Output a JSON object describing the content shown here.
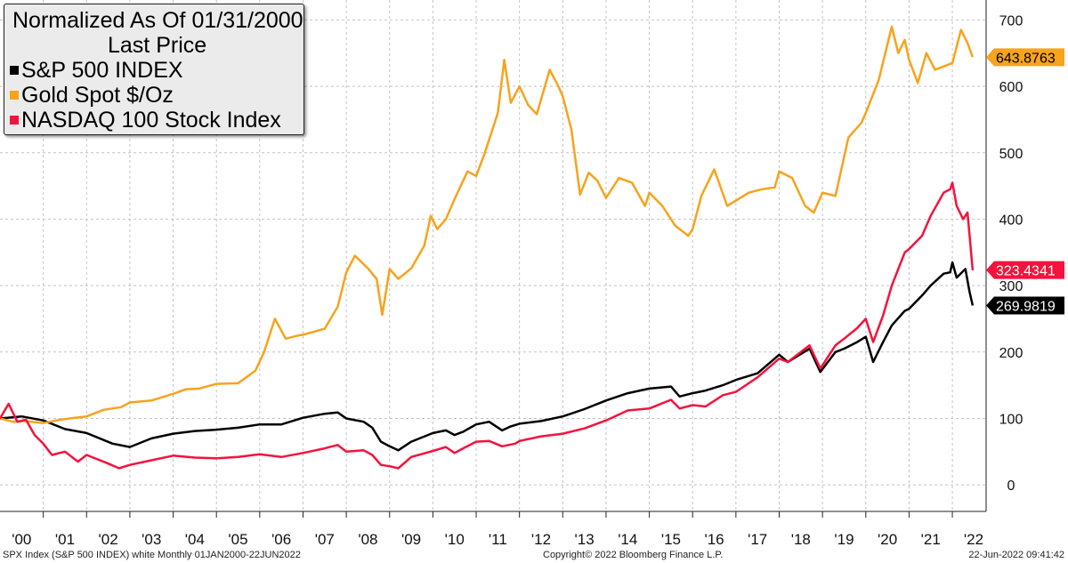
{
  "legend": {
    "title": "Normalized As Of 01/31/2000",
    "subtitle": "Last Price"
  },
  "footer": {
    "left": "SPX Index (S&P 500 INDEX) white  Monthly 01JAN2000-22JUN2022",
    "center": "Copyright© 2022 Bloomberg Finance L.P.",
    "right": "22-Jun-2022 09:41:42"
  },
  "chart_data": {
    "type": "line",
    "title": "Normalized As Of 01/31/2000",
    "subtitle": "Last Price",
    "x_labels": [
      "'00",
      "'01",
      "'02",
      "'03",
      "'04",
      "'05",
      "'06",
      "'07",
      "'08",
      "'09",
      "'10",
      "'11",
      "'12",
      "'13",
      "'14",
      "'15",
      "'16",
      "'17",
      "'18",
      "'19",
      "'20",
      "'21",
      "'22"
    ],
    "y_ticks": [
      0,
      100,
      200,
      300,
      400,
      500,
      600,
      700
    ],
    "ylim": [
      -40,
      730
    ],
    "y_axis_position": "right",
    "grid": true,
    "legend_position": "top-left",
    "series": [
      {
        "name": "S&P 500 INDEX",
        "color": "#000000",
        "last_label": "269.9819",
        "last_value": 269.9819,
        "label_text_color": "#ffffff",
        "points": [
          [
            2000.0,
            100
          ],
          [
            2000.5,
            103
          ],
          [
            2001.0,
            97
          ],
          [
            2001.5,
            84
          ],
          [
            2002.0,
            78
          ],
          [
            2002.6,
            62
          ],
          [
            2003.0,
            57
          ],
          [
            2003.5,
            70
          ],
          [
            2004.0,
            77
          ],
          [
            2004.5,
            81
          ],
          [
            2005.0,
            83
          ],
          [
            2005.5,
            86
          ],
          [
            2006.0,
            91
          ],
          [
            2006.5,
            91
          ],
          [
            2007.0,
            101
          ],
          [
            2007.5,
            107
          ],
          [
            2007.8,
            109
          ],
          [
            2008.0,
            100
          ],
          [
            2008.4,
            95
          ],
          [
            2008.6,
            86
          ],
          [
            2008.8,
            65
          ],
          [
            2009.0,
            58
          ],
          [
            2009.2,
            52
          ],
          [
            2009.5,
            65
          ],
          [
            2010.0,
            78
          ],
          [
            2010.3,
            82
          ],
          [
            2010.5,
            75
          ],
          [
            2010.7,
            80
          ],
          [
            2011.0,
            91
          ],
          [
            2011.3,
            95
          ],
          [
            2011.6,
            82
          ],
          [
            2011.8,
            88
          ],
          [
            2012.0,
            92
          ],
          [
            2012.5,
            96
          ],
          [
            2013.0,
            103
          ],
          [
            2013.5,
            114
          ],
          [
            2014.0,
            127
          ],
          [
            2014.5,
            138
          ],
          [
            2015.0,
            145
          ],
          [
            2015.5,
            148
          ],
          [
            2015.7,
            133
          ],
          [
            2016.0,
            138
          ],
          [
            2016.3,
            142
          ],
          [
            2016.7,
            150
          ],
          [
            2017.0,
            158
          ],
          [
            2017.5,
            168
          ],
          [
            2018.0,
            196
          ],
          [
            2018.2,
            185
          ],
          [
            2018.7,
            205
          ],
          [
            2018.95,
            170
          ],
          [
            2019.3,
            200
          ],
          [
            2019.5,
            205
          ],
          [
            2019.8,
            215
          ],
          [
            2020.0,
            223
          ],
          [
            2020.17,
            185
          ],
          [
            2020.4,
            215
          ],
          [
            2020.6,
            240
          ],
          [
            2020.9,
            262
          ],
          [
            2021.0,
            265
          ],
          [
            2021.3,
            285
          ],
          [
            2021.5,
            300
          ],
          [
            2021.8,
            318
          ],
          [
            2021.95,
            320
          ],
          [
            2022.0,
            335
          ],
          [
            2022.1,
            312
          ],
          [
            2022.3,
            325
          ],
          [
            2022.4,
            290
          ],
          [
            2022.47,
            270
          ]
        ]
      },
      {
        "name": "Gold Spot $/Oz",
        "color": "#f7a31c",
        "last_label": "643.8763",
        "last_value": 643.8763,
        "label_text_color": "#000000",
        "points": [
          [
            2000.0,
            100
          ],
          [
            2000.3,
            95
          ],
          [
            2000.6,
            96
          ],
          [
            2001.0,
            93
          ],
          [
            2001.3,
            97
          ],
          [
            2001.6,
            100
          ],
          [
            2002.0,
            103
          ],
          [
            2002.4,
            113
          ],
          [
            2002.8,
            117
          ],
          [
            2003.0,
            124
          ],
          [
            2003.5,
            127
          ],
          [
            2004.0,
            137
          ],
          [
            2004.3,
            144
          ],
          [
            2004.6,
            145
          ],
          [
            2005.0,
            152
          ],
          [
            2005.5,
            153
          ],
          [
            2005.9,
            172
          ],
          [
            2006.1,
            200
          ],
          [
            2006.35,
            250
          ],
          [
            2006.6,
            220
          ],
          [
            2006.9,
            225
          ],
          [
            2007.0,
            226
          ],
          [
            2007.5,
            235
          ],
          [
            2007.8,
            268
          ],
          [
            2008.0,
            320
          ],
          [
            2008.2,
            345
          ],
          [
            2008.5,
            326
          ],
          [
            2008.7,
            310
          ],
          [
            2008.83,
            256
          ],
          [
            2009.0,
            325
          ],
          [
            2009.2,
            310
          ],
          [
            2009.5,
            326
          ],
          [
            2009.8,
            360
          ],
          [
            2009.95,
            405
          ],
          [
            2010.1,
            385
          ],
          [
            2010.3,
            400
          ],
          [
            2010.5,
            430
          ],
          [
            2010.8,
            472
          ],
          [
            2011.0,
            465
          ],
          [
            2011.2,
            500
          ],
          [
            2011.5,
            560
          ],
          [
            2011.65,
            640
          ],
          [
            2011.8,
            575
          ],
          [
            2012.0,
            600
          ],
          [
            2012.2,
            572
          ],
          [
            2012.4,
            558
          ],
          [
            2012.7,
            625
          ],
          [
            2012.9,
            600
          ],
          [
            2013.0,
            585
          ],
          [
            2013.2,
            535
          ],
          [
            2013.4,
            437
          ],
          [
            2013.6,
            470
          ],
          [
            2013.8,
            458
          ],
          [
            2014.0,
            432
          ],
          [
            2014.3,
            462
          ],
          [
            2014.6,
            455
          ],
          [
            2014.9,
            420
          ],
          [
            2015.0,
            440
          ],
          [
            2015.3,
            420
          ],
          [
            2015.6,
            390
          ],
          [
            2015.9,
            375
          ],
          [
            2016.0,
            385
          ],
          [
            2016.2,
            435
          ],
          [
            2016.5,
            475
          ],
          [
            2016.8,
            420
          ],
          [
            2017.0,
            428
          ],
          [
            2017.3,
            440
          ],
          [
            2017.6,
            445
          ],
          [
            2017.9,
            448
          ],
          [
            2018.0,
            472
          ],
          [
            2018.3,
            462
          ],
          [
            2018.6,
            420
          ],
          [
            2018.8,
            410
          ],
          [
            2019.0,
            440
          ],
          [
            2019.3,
            435
          ],
          [
            2019.6,
            523
          ],
          [
            2019.9,
            545
          ],
          [
            2020.0,
            560
          ],
          [
            2020.3,
            610
          ],
          [
            2020.6,
            690
          ],
          [
            2020.75,
            650
          ],
          [
            2020.9,
            670
          ],
          [
            2021.0,
            640
          ],
          [
            2021.2,
            605
          ],
          [
            2021.4,
            650
          ],
          [
            2021.6,
            625
          ],
          [
            2021.8,
            630
          ],
          [
            2022.0,
            635
          ],
          [
            2022.2,
            685
          ],
          [
            2022.35,
            665
          ],
          [
            2022.47,
            644
          ]
        ]
      },
      {
        "name": "NASDAQ 100 Stock Index",
        "color": "#f5123d",
        "last_label": "323.4341",
        "last_value": 323.4341,
        "label_text_color": "#ffffff",
        "points": [
          [
            2000.0,
            100
          ],
          [
            2000.2,
            122
          ],
          [
            2000.4,
            95
          ],
          [
            2000.6,
            98
          ],
          [
            2000.8,
            75
          ],
          [
            2001.0,
            62
          ],
          [
            2001.2,
            45
          ],
          [
            2001.5,
            50
          ],
          [
            2001.8,
            35
          ],
          [
            2002.0,
            45
          ],
          [
            2002.5,
            32
          ],
          [
            2002.75,
            25
          ],
          [
            2003.0,
            30
          ],
          [
            2003.5,
            37
          ],
          [
            2004.0,
            44
          ],
          [
            2004.5,
            41
          ],
          [
            2005.0,
            40
          ],
          [
            2005.5,
            42
          ],
          [
            2006.0,
            46
          ],
          [
            2006.5,
            42
          ],
          [
            2007.0,
            48
          ],
          [
            2007.5,
            55
          ],
          [
            2007.8,
            60
          ],
          [
            2008.0,
            50
          ],
          [
            2008.4,
            52
          ],
          [
            2008.6,
            45
          ],
          [
            2008.8,
            30
          ],
          [
            2009.0,
            28
          ],
          [
            2009.2,
            25
          ],
          [
            2009.5,
            42
          ],
          [
            2010.0,
            51
          ],
          [
            2010.3,
            57
          ],
          [
            2010.5,
            48
          ],
          [
            2010.7,
            55
          ],
          [
            2011.0,
            65
          ],
          [
            2011.3,
            66
          ],
          [
            2011.6,
            58
          ],
          [
            2011.9,
            62
          ],
          [
            2012.0,
            66
          ],
          [
            2012.5,
            73
          ],
          [
            2013.0,
            77
          ],
          [
            2013.5,
            85
          ],
          [
            2014.0,
            97
          ],
          [
            2014.5,
            112
          ],
          [
            2015.0,
            115
          ],
          [
            2015.5,
            128
          ],
          [
            2015.7,
            115
          ],
          [
            2016.0,
            120
          ],
          [
            2016.3,
            118
          ],
          [
            2016.7,
            135
          ],
          [
            2017.0,
            140
          ],
          [
            2017.5,
            162
          ],
          [
            2018.0,
            190
          ],
          [
            2018.2,
            185
          ],
          [
            2018.7,
            210
          ],
          [
            2018.95,
            175
          ],
          [
            2019.3,
            210
          ],
          [
            2019.5,
            220
          ],
          [
            2019.8,
            236
          ],
          [
            2020.0,
            250
          ],
          [
            2020.17,
            215
          ],
          [
            2020.4,
            255
          ],
          [
            2020.6,
            300
          ],
          [
            2020.9,
            350
          ],
          [
            2021.0,
            355
          ],
          [
            2021.3,
            375
          ],
          [
            2021.5,
            405
          ],
          [
            2021.8,
            440
          ],
          [
            2021.95,
            445
          ],
          [
            2022.0,
            455
          ],
          [
            2022.1,
            420
          ],
          [
            2022.25,
            400
          ],
          [
            2022.35,
            410
          ],
          [
            2022.47,
            323
          ]
        ]
      }
    ]
  }
}
